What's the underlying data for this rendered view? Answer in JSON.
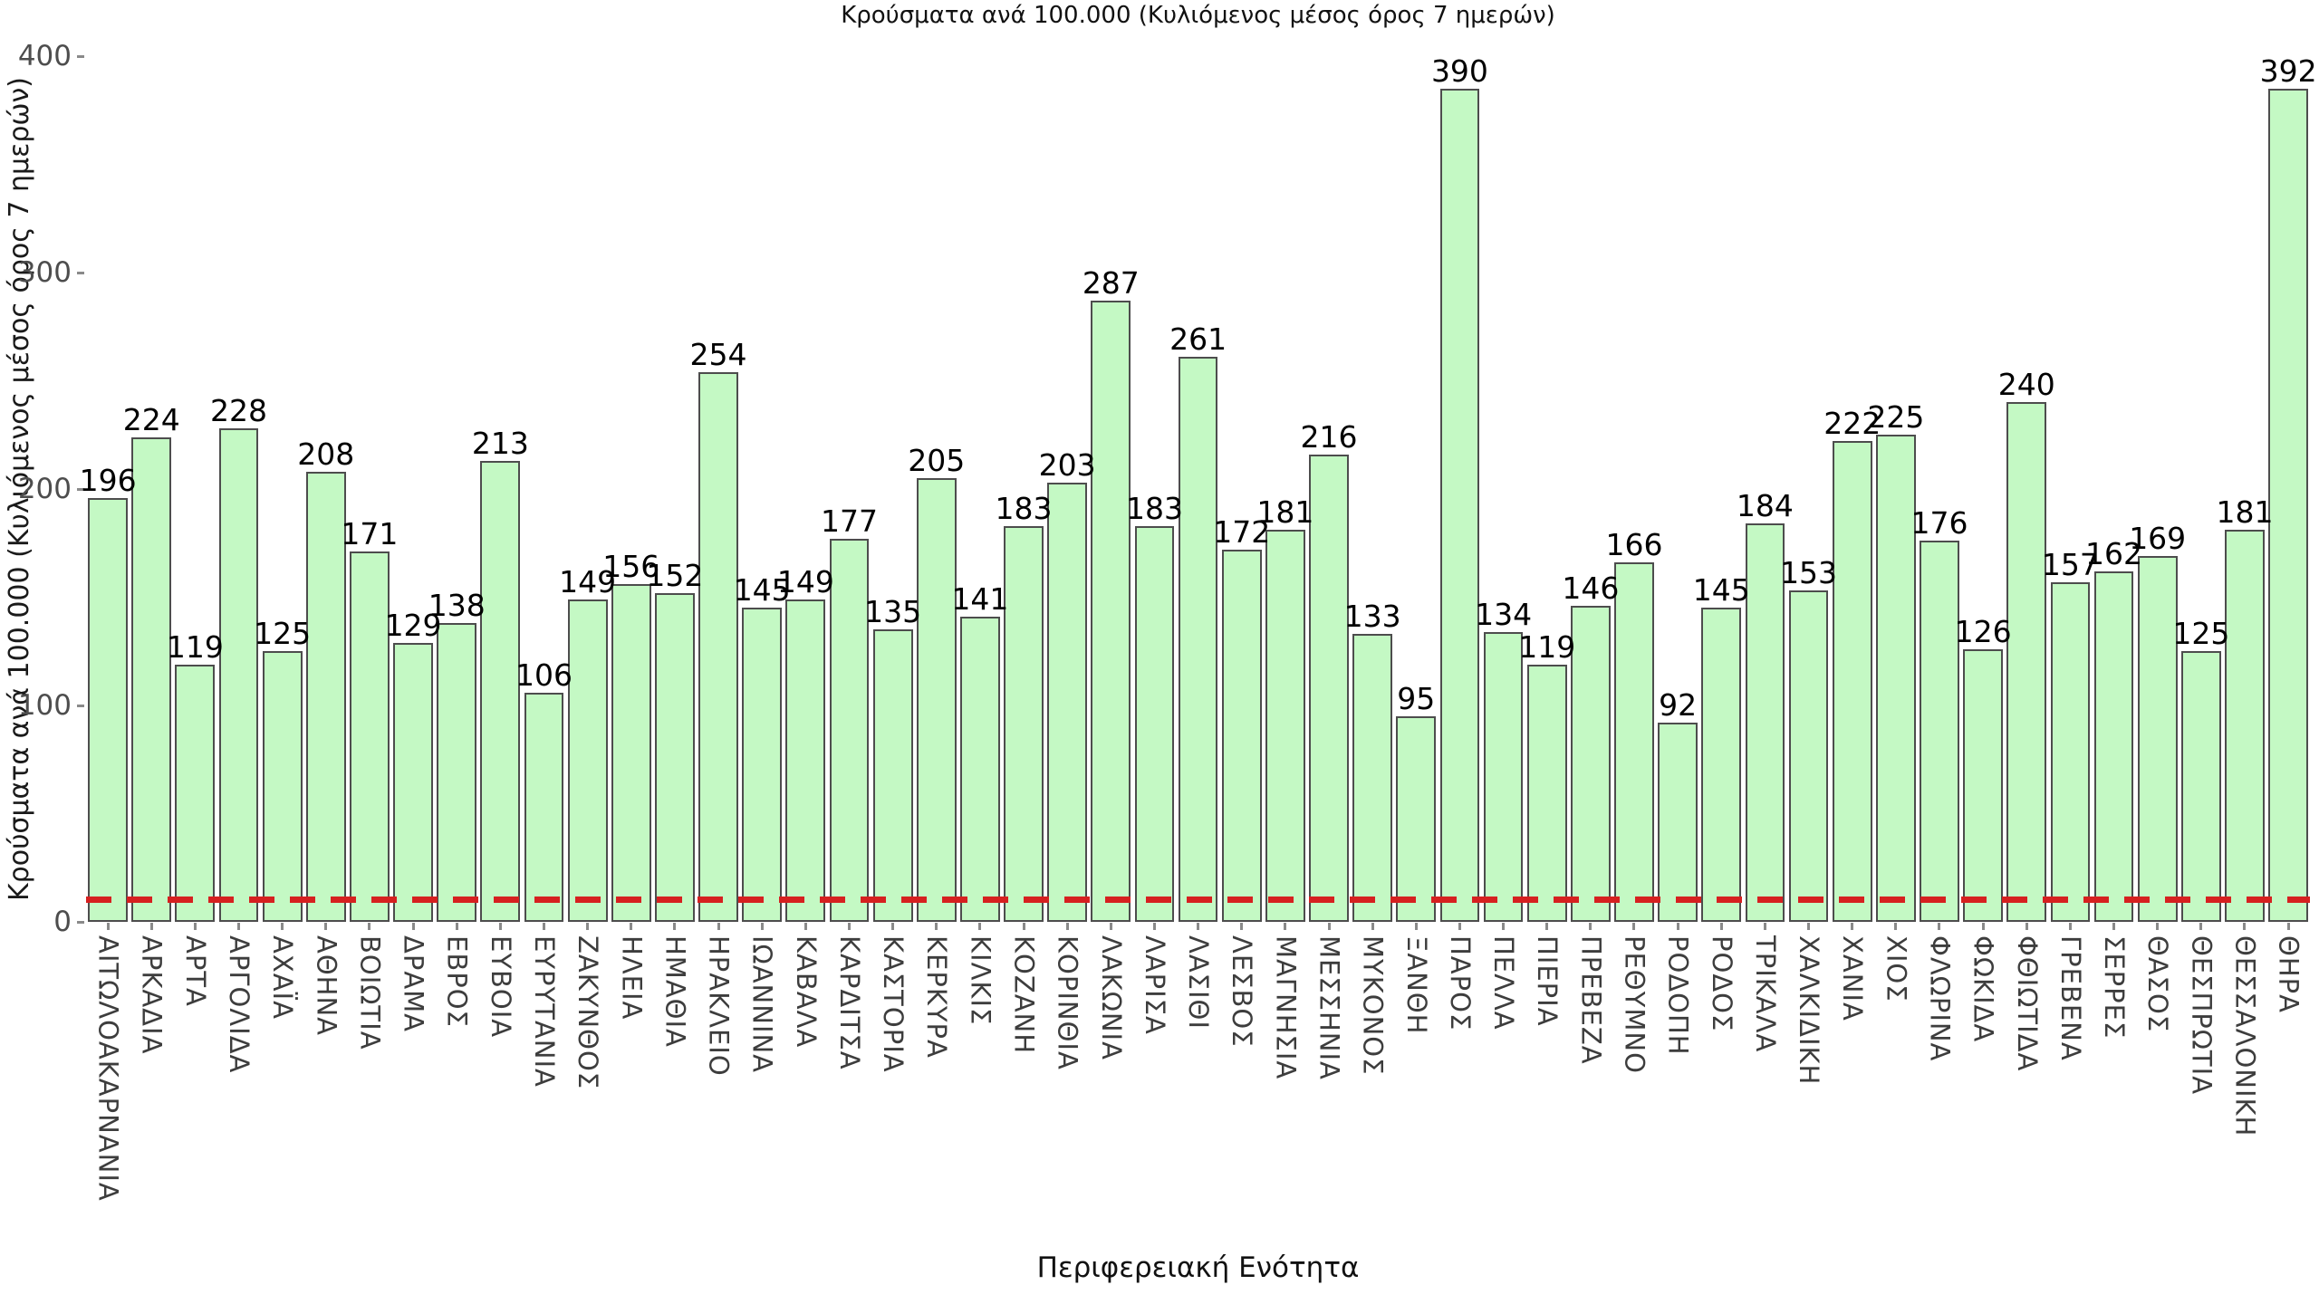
{
  "chart": {
    "title": "Κρούσματα ανά 100.000 (Κυλιόμενος μέσος όρος 7 ημερών)",
    "xlabel": "Περιφερειακή Ενότητα",
    "ylabel": "Κρούσματα ανά 100.000 (Κυλιόμενος μέσος όρος 7 ημερών)"
  },
  "chart_data": {
    "type": "bar",
    "title": "Κρούσματα ανά 100.000 (Κυλιόμενος μέσος όρος 7 ημερών)",
    "xlabel": "Περιφερειακή Ενότητα",
    "ylabel": "Κρούσματα ανά 100.000 (Κυλιόμενος μέσος όρος 7 ημερών)",
    "categories": [
      "ΑΙΤΩΛΟΑΚΑΡΝΑΝΙΑ",
      "ΑΡΚΑΔΙΑ",
      "ΑΡΤΑ",
      "ΑΡΓΟΛΙΔΑ",
      "ΑΧΑΪΑ",
      "ΑΘΗΝΑ",
      "ΒΟΙΩΤΙΑ",
      "ΔΡΑΜΑ",
      "ΕΒΡΟΣ",
      "ΕΥΒΟΙΑ",
      "ΕΥΡΥΤΑΝΙΑ",
      "ΖΑΚΥΝΘΟΣ",
      "ΗΛΕΙΑ",
      "ΗΜΑΘΙΑ",
      "ΗΡΑΚΛΕΙΟ",
      "ΙΩΑΝΝΙΝΑ",
      "ΚΑΒΑΛΑ",
      "ΚΑΡΔΙΤΣΑ",
      "ΚΑΣΤΟΡΙΑ",
      "ΚΕΡΚΥΡΑ",
      "ΚΙΛΚΙΣ",
      "ΚΟΖΑΝΗ",
      "ΚΟΡΙΝΘΙΑ",
      "ΛΑΚΩΝΙΑ",
      "ΛΑΡΙΣΑ",
      "ΛΑΣΙΘΙ",
      "ΛΕΣΒΟΣ",
      "ΜΑΓΝΗΣΙΑ",
      "ΜΕΣΣΗΝΙΑ",
      "ΜΥΚΟΝΟΣ",
      "ΞΑΝΘΗ",
      "ΠΑΡΟΣ",
      "ΠΕΛΛΑ",
      "ΠΙΕΡΙΑ",
      "ΠΡΕΒΕΖΑ",
      "ΡΕΘΥΜΝΟ",
      "ΡΟΔΟΠΗ",
      "ΡΟΔΟΣ",
      "ΤΡΙΚΑΛΑ",
      "ΧΑΛΚΙΔΙΚΗ",
      "ΧΑΝΙΑ",
      "ΧΙΟΣ",
      "ΦΛΩΡΙΝΑ",
      "ΦΩΚΙΔΑ",
      "ΦΘΙΩΤΙΔΑ",
      "ΓΡΕΒΕΝΑ",
      "ΣΕΡΡΕΣ",
      "ΘΑΣΟΣ",
      "ΘΕΣΠΡΩΤΙΑ",
      "ΘΕΣΣΑΛΟΝΙΚΗ",
      "ΘΗΡΑ"
    ],
    "values": [
      196,
      224,
      119,
      228,
      125,
      208,
      171,
      129,
      138,
      213,
      106,
      149,
      156,
      152,
      254,
      145,
      149,
      177,
      135,
      205,
      141,
      183,
      203,
      287,
      183,
      261,
      172,
      181,
      216,
      133,
      95,
      390,
      134,
      119,
      146,
      166,
      92,
      145,
      184,
      153,
      222,
      225,
      176,
      126,
      240,
      157,
      162,
      169,
      125,
      181,
      392
    ],
    "value_labels_shown": true,
    "ylim": [
      0,
      400
    ],
    "yticks": [
      0,
      100,
      200,
      300,
      400
    ],
    "grid": false,
    "legend_position": "none",
    "bar_color": "#c4f9c4",
    "bar_edge_color": "#4d4d4d",
    "threshold_line": {
      "value": 10,
      "color": "#d62020",
      "style": "dashed"
    }
  }
}
